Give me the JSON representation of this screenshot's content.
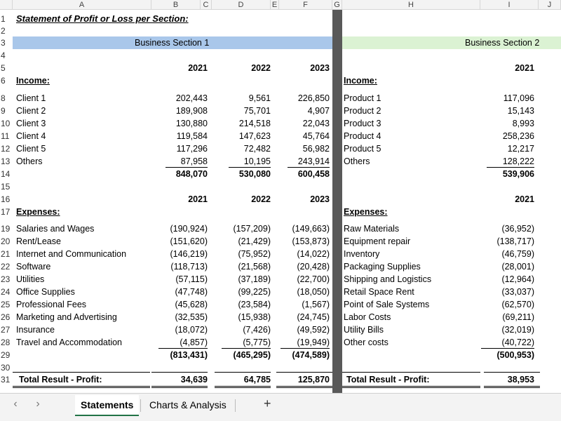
{
  "columns": [
    "A",
    "B",
    "C",
    "D",
    "E",
    "F",
    "G",
    "H",
    "I",
    "J"
  ],
  "title": "Statement of Profit or Loss per Section:",
  "section1": {
    "band": "Business Section 1",
    "years": [
      "2021",
      "2022",
      "2023"
    ],
    "income_label": "Income:",
    "income": [
      {
        "name": "Client 1",
        "v": [
          "202,443",
          "9,561",
          "226,850"
        ]
      },
      {
        "name": "Client 2",
        "v": [
          "189,908",
          "75,701",
          "4,907"
        ]
      },
      {
        "name": "Client 3",
        "v": [
          "130,880",
          "214,518",
          "22,043"
        ]
      },
      {
        "name": "Client 4",
        "v": [
          "119,584",
          "147,623",
          "45,764"
        ]
      },
      {
        "name": "Client 5",
        "v": [
          "117,296",
          "72,482",
          "56,982"
        ]
      },
      {
        "name": "Others",
        "v": [
          "87,958",
          "10,195",
          "243,914"
        ]
      }
    ],
    "income_total": [
      "848,070",
      "530,080",
      "600,458"
    ],
    "expenses_label": "Expenses:",
    "expenses": [
      {
        "name": "Salaries and Wages",
        "v": [
          "(190,924)",
          "(157,209)",
          "(149,663)"
        ]
      },
      {
        "name": "Rent/Lease",
        "v": [
          "(151,620)",
          "(21,429)",
          "(153,873)"
        ]
      },
      {
        "name": "Internet and Communication",
        "v": [
          "(146,219)",
          "(75,952)",
          "(14,022)"
        ]
      },
      {
        "name": "Software",
        "v": [
          "(118,713)",
          "(21,568)",
          "(20,428)"
        ]
      },
      {
        "name": "Utilities",
        "v": [
          "(57,115)",
          "(37,189)",
          "(22,700)"
        ]
      },
      {
        "name": "Office Supplies",
        "v": [
          "(47,748)",
          "(99,225)",
          "(18,050)"
        ]
      },
      {
        "name": "Professional Fees",
        "v": [
          "(45,628)",
          "(23,584)",
          "(1,567)"
        ]
      },
      {
        "name": "Marketing and Advertising",
        "v": [
          "(32,535)",
          "(15,938)",
          "(24,745)"
        ]
      },
      {
        "name": "Insurance",
        "v": [
          "(18,072)",
          "(7,426)",
          "(49,592)"
        ]
      },
      {
        "name": "Travel and Accommodation",
        "v": [
          "(4,857)",
          "(5,775)",
          "(19,949)"
        ]
      }
    ],
    "expenses_total": [
      "(813,431)",
      "(465,295)",
      "(474,589)"
    ],
    "result_label": "Total Result - Profit:",
    "result": [
      "34,639",
      "64,785",
      "125,870"
    ]
  },
  "section2": {
    "band": "Business Section 2",
    "year": "2021",
    "income_label": "Income:",
    "income": [
      {
        "name": "Product 1",
        "v": "117,096"
      },
      {
        "name": "Product 2",
        "v": "15,143"
      },
      {
        "name": "Product 3",
        "v": "8,993"
      },
      {
        "name": "Product 4",
        "v": "258,236"
      },
      {
        "name": "Product 5",
        "v": "12,217"
      },
      {
        "name": "Others",
        "v": "128,222"
      }
    ],
    "income_total": "539,906",
    "expenses_label": "Expenses:",
    "expenses": [
      {
        "name": "Raw Materials",
        "v": "(36,952)"
      },
      {
        "name": "Equipment repair",
        "v": "(138,717)"
      },
      {
        "name": "Inventory",
        "v": "(46,759)"
      },
      {
        "name": "Packaging Supplies",
        "v": "(28,001)"
      },
      {
        "name": "Shipping and Logistics",
        "v": "(12,964)"
      },
      {
        "name": "Retail Space Rent",
        "v": "(33,037)"
      },
      {
        "name": "Point of Sale Systems",
        "v": "(62,570)"
      },
      {
        "name": "Labor Costs",
        "v": "(69,211)"
      },
      {
        "name": "Utility Bills",
        "v": "(32,019)"
      },
      {
        "name": "Other costs",
        "v": "(40,722)"
      }
    ],
    "expenses_total": "(500,953)",
    "result_label": "Total Result - Profit:",
    "result": "38,953"
  },
  "row_numbers": [
    "1",
    "2",
    "3",
    "4",
    "5",
    "6",
    "8",
    "9",
    "10",
    "11",
    "12",
    "13",
    "14",
    "15",
    "16",
    "17",
    "19",
    "20",
    "21",
    "22",
    "23",
    "24",
    "25",
    "26",
    "27",
    "28",
    "29",
    "30",
    "31"
  ],
  "tabs": {
    "prev": "‹",
    "next": "›",
    "items": [
      "Statements",
      "Charts & Analysis"
    ],
    "add": "+"
  }
}
